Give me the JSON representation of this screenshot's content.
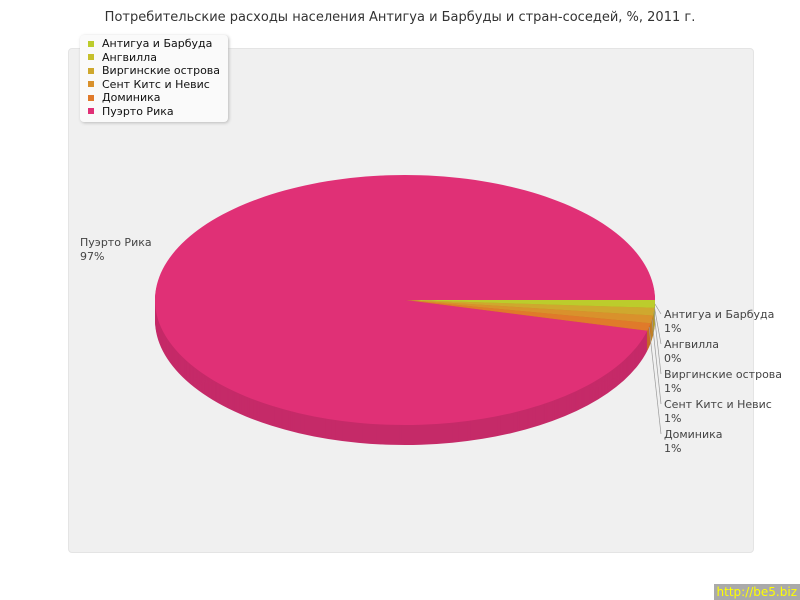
{
  "chart_data": {
    "type": "pie",
    "title": "Потребительские расходы населения Антигуа и Барбуды и стран-соседей, %, 2011 г.",
    "categories": [
      "Антигуа и Барбуда",
      "Ангвилла",
      "Виргинские острова",
      "Сент Китс и Невис",
      "Доминика",
      "Пуэрто Рика"
    ],
    "values": [
      1,
      0,
      1,
      1,
      1,
      97
    ],
    "labels": [
      "1%",
      "0%",
      "1%",
      "1%",
      "1%",
      "97%"
    ],
    "colors": [
      "#bccc2c",
      "#c6c02c",
      "#cfa82e",
      "#d9912c",
      "#e07a2a",
      "#e03076"
    ],
    "legend": "top-left"
  },
  "watermark": "http://be5.biz"
}
